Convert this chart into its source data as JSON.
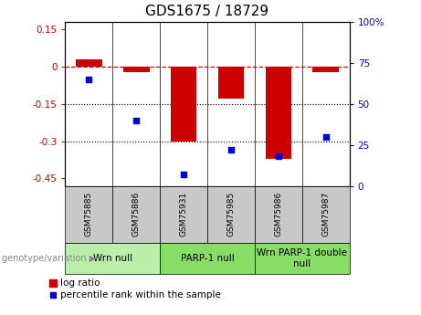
{
  "title": "GDS1675 / 18729",
  "samples": [
    "GSM75885",
    "GSM75886",
    "GSM75931",
    "GSM75985",
    "GSM75986",
    "GSM75987"
  ],
  "log_ratios": [
    0.03,
    -0.02,
    -0.3,
    -0.13,
    -0.37,
    -0.02
  ],
  "percentile_ranks": [
    65,
    40,
    7,
    22,
    18,
    30
  ],
  "ylim_left": [
    -0.48,
    0.18
  ],
  "ylim_right": [
    0,
    100
  ],
  "yticks_left": [
    0.15,
    0,
    -0.15,
    -0.3,
    -0.45
  ],
  "yticks_right": [
    100,
    75,
    50,
    25,
    0
  ],
  "hlines": [
    -0.15,
    -0.3
  ],
  "bar_color": "#cc0000",
  "scatter_color": "#0000cc",
  "bar_width": 0.55,
  "groups": [
    {
      "label": "Wrn null",
      "start": 0,
      "end": 2,
      "color": "#bbeeaa"
    },
    {
      "label": "PARP-1 null",
      "start": 2,
      "end": 4,
      "color": "#88dd66"
    },
    {
      "label": "Wrn PARP-1 double\nnull",
      "start": 4,
      "end": 6,
      "color": "#88dd66"
    }
  ],
  "group_bg_color": "#c8c8c8",
  "legend_bar_label": "log ratio",
  "legend_scatter_label": "percentile rank within the sample",
  "ylabel_left_color": "#cc0000",
  "ylabel_right_color": "#0000cc",
  "genotype_label": "genotype/variation",
  "title_fontsize": 11,
  "tick_fontsize": 7.5,
  "sample_fontsize": 6.5,
  "group_label_fontsize": 7.5
}
